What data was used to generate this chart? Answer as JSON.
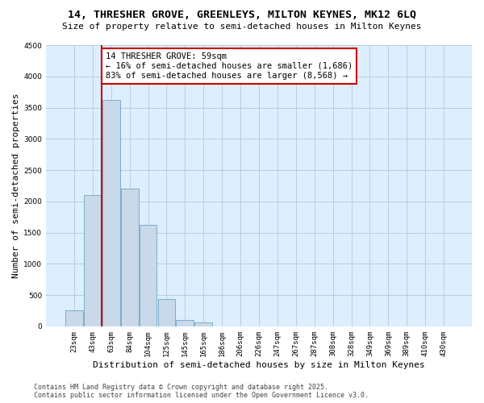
{
  "title_line1": "14, THRESHER GROVE, GREENLEYS, MILTON KEYNES, MK12 6LQ",
  "title_line2": "Size of property relative to semi-detached houses in Milton Keynes",
  "xlabel": "Distribution of semi-detached houses by size in Milton Keynes",
  "ylabel": "Number of semi-detached properties",
  "categories": [
    "23sqm",
    "43sqm",
    "63sqm",
    "84sqm",
    "104sqm",
    "125sqm",
    "145sqm",
    "165sqm",
    "186sqm",
    "206sqm",
    "226sqm",
    "247sqm",
    "267sqm",
    "287sqm",
    "308sqm",
    "328sqm",
    "349sqm",
    "369sqm",
    "389sqm",
    "410sqm",
    "430sqm"
  ],
  "values": [
    250,
    2100,
    3625,
    2200,
    1625,
    440,
    100,
    60,
    0,
    0,
    0,
    0,
    0,
    0,
    0,
    0,
    0,
    0,
    0,
    0,
    0
  ],
  "bar_color": "#c9d9ea",
  "bar_edgecolor": "#7aadcc",
  "redline_x": 1.5,
  "annotation_title": "14 THRESHER GROVE: 59sqm",
  "annotation_line2": "← 16% of semi-detached houses are smaller (1,686)",
  "annotation_line3": "83% of semi-detached houses are larger (8,568) →",
  "annotation_box_facecolor": "#ffffff",
  "annotation_box_edgecolor": "#cc0000",
  "redline_color": "#cc0000",
  "grid_color": "#b8ccdd",
  "background_color": "#ddeeff",
  "ylim": [
    0,
    4500
  ],
  "yticks": [
    0,
    500,
    1000,
    1500,
    2000,
    2500,
    3000,
    3500,
    4000,
    4500
  ],
  "footer_line1": "Contains HM Land Registry data © Crown copyright and database right 2025.",
  "footer_line2": "Contains public sector information licensed under the Open Government Licence v3.0.",
  "title_fontsize": 9.5,
  "subtitle_fontsize": 8,
  "axis_label_fontsize": 8,
  "tick_fontsize": 6.5,
  "annotation_fontsize": 7.5,
  "footer_fontsize": 6
}
